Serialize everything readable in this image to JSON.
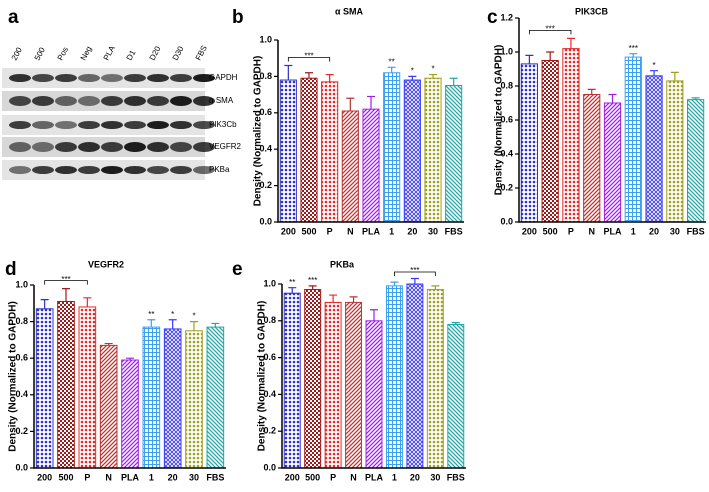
{
  "blot": {
    "panel_label": "a",
    "lanes": [
      "200",
      "500",
      "Pos",
      "Neg",
      "PLA",
      "D1",
      "D20",
      "D30",
      "FBS"
    ],
    "bands": [
      "GAPDH",
      "α SMA",
      "PIK3Cb",
      "VEGFR2",
      "PKBa"
    ]
  },
  "chart_data": [
    {
      "type": "bar",
      "panel_label": "b",
      "title": "α SMA",
      "y_label": "Density (Normalized to GAPDH)",
      "categories": [
        "200",
        "500",
        "P",
        "N",
        "PLA",
        "1",
        "20",
        "30",
        "FBS"
      ],
      "values": [
        0.78,
        0.79,
        0.77,
        0.61,
        0.62,
        0.82,
        0.78,
        0.79,
        0.75
      ],
      "errors": [
        0.08,
        0.03,
        0.04,
        0.07,
        0.07,
        0.03,
        0.02,
        0.02,
        0.04
      ],
      "colors": [
        "#3030c8",
        "#a01818",
        "#e82828",
        "#b83434",
        "#a020e0",
        "#3ca0f0",
        "#3838ff",
        "#a0a020",
        "#20a8a8"
      ],
      "ylim": [
        0,
        1.0
      ],
      "yticks": [
        {
          "value": 0,
          "label": "0.0"
        },
        {
          "value": 0.2,
          "label": "0.2"
        },
        {
          "value": 0.4,
          "label": "0.4"
        },
        {
          "value": 0.6,
          "label": "0.6"
        },
        {
          "value": 0.8,
          "label": "0.8"
        },
        {
          "value": 1.0,
          "label": "1.0"
        }
      ],
      "annotations": [
        {
          "at": "1",
          "text": "**"
        },
        {
          "at": "20",
          "text": "*"
        },
        {
          "at": "30",
          "text": "*"
        }
      ],
      "brackets": [
        {
          "from": "200",
          "to": "P",
          "text": "***"
        }
      ]
    },
    {
      "type": "bar",
      "panel_label": "c",
      "title": "PIK3CB",
      "y_label": "Density (Normalized to GAPDH)",
      "categories": [
        "200",
        "500",
        "P",
        "N",
        "PLA",
        "1",
        "20",
        "30",
        "FBS"
      ],
      "values": [
        0.93,
        0.95,
        1.02,
        0.75,
        0.7,
        0.97,
        0.86,
        0.83,
        0.72
      ],
      "errors": [
        0.05,
        0.05,
        0.06,
        0.03,
        0.05,
        0.02,
        0.03,
        0.05,
        0.01
      ],
      "colors": [
        "#3030c8",
        "#a01818",
        "#e82828",
        "#b83434",
        "#a020e0",
        "#3ca0f0",
        "#3838ff",
        "#a0a020",
        "#20a8a8"
      ],
      "ylim": [
        0,
        1.2
      ],
      "yticks": [
        {
          "value": 0,
          "label": "0.0"
        },
        {
          "value": 0.2,
          "label": "0.2"
        },
        {
          "value": 0.4,
          "label": "0.4"
        },
        {
          "value": 0.6,
          "label": "0.6"
        },
        {
          "value": 0.8,
          "label": "0.8"
        },
        {
          "value": 1.0,
          "label": "1.0"
        },
        {
          "value": 1.2,
          "label": "1.2"
        }
      ],
      "annotations": [
        {
          "at": "1",
          "text": "***"
        },
        {
          "at": "20",
          "text": "*"
        }
      ],
      "brackets": [
        {
          "from": "200",
          "to": "P",
          "text": "***"
        }
      ]
    },
    {
      "type": "bar",
      "panel_label": "d",
      "title": "VEGFR2",
      "y_label": "Density (Normalized to GAPDH)",
      "categories": [
        "200",
        "500",
        "P",
        "N",
        "PLA",
        "1",
        "20",
        "30",
        "FBS"
      ],
      "values": [
        0.87,
        0.91,
        0.88,
        0.67,
        0.59,
        0.77,
        0.76,
        0.75,
        0.77
      ],
      "errors": [
        0.05,
        0.07,
        0.05,
        0.01,
        0.01,
        0.04,
        0.05,
        0.05,
        0.02
      ],
      "colors": [
        "#3030c8",
        "#a01818",
        "#e82828",
        "#b83434",
        "#a020e0",
        "#3ca0f0",
        "#3838ff",
        "#a0a020",
        "#20a8a8"
      ],
      "ylim": [
        0,
        1.0
      ],
      "yticks": [
        {
          "value": 0,
          "label": "0.0"
        },
        {
          "value": 0.2,
          "label": "0.2"
        },
        {
          "value": 0.4,
          "label": "0.4"
        },
        {
          "value": 0.6,
          "label": "0.6"
        },
        {
          "value": 0.8,
          "label": "0.8"
        },
        {
          "value": 1.0,
          "label": "1.0"
        }
      ],
      "annotations": [
        {
          "at": "1",
          "text": "**"
        },
        {
          "at": "20",
          "text": "*"
        },
        {
          "at": "30",
          "text": "*"
        }
      ],
      "brackets": [
        {
          "from": "200",
          "to": "P",
          "text": "***"
        }
      ]
    },
    {
      "type": "bar",
      "panel_label": "e",
      "title": "PKBa",
      "y_label": "Density (Normalized to GAPDH)",
      "categories": [
        "200",
        "500",
        "P",
        "N",
        "PLA",
        "1",
        "20",
        "30",
        "FBS"
      ],
      "values": [
        0.95,
        0.97,
        0.9,
        0.9,
        0.8,
        0.99,
        1.0,
        0.97,
        0.78
      ],
      "errors": [
        0.03,
        0.02,
        0.04,
        0.03,
        0.06,
        0.02,
        0.03,
        0.02,
        0.01
      ],
      "colors": [
        "#3030c8",
        "#a01818",
        "#e82828",
        "#b83434",
        "#a020e0",
        "#3ca0f0",
        "#3838ff",
        "#a0a020",
        "#20a8a8"
      ],
      "ylim": [
        0,
        1.0
      ],
      "yticks": [
        {
          "value": 0,
          "label": "0.0"
        },
        {
          "value": 0.2,
          "label": "0.2"
        },
        {
          "value": 0.4,
          "label": "0.4"
        },
        {
          "value": 0.6,
          "label": "0.6"
        },
        {
          "value": 0.8,
          "label": "0.8"
        },
        {
          "value": 1.0,
          "label": "1.0"
        }
      ],
      "annotations": [
        {
          "at": "200",
          "text": "**"
        },
        {
          "at": "500",
          "text": "***"
        }
      ],
      "brackets": [
        {
          "from": "1",
          "to": "30",
          "text": "***"
        }
      ]
    }
  ]
}
